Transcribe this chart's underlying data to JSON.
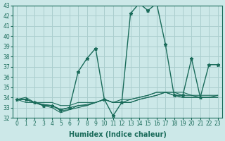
{
  "xlabel": "Humidex (Indice chaleur)",
  "x": [
    0,
    1,
    2,
    3,
    4,
    5,
    6,
    7,
    8,
    9,
    10,
    11,
    12,
    13,
    14,
    15,
    16,
    17,
    18,
    19,
    20,
    21,
    22,
    23
  ],
  "series": [
    {
      "values": [
        33.8,
        33.8,
        33.5,
        33.2,
        33.2,
        32.8,
        33.0,
        36.5,
        37.8,
        38.8,
        33.8,
        32.2,
        33.5,
        42.2,
        43.2,
        42.5,
        43.2,
        39.2,
        34.2,
        34.2,
        37.8,
        34.0,
        37.2,
        37.2
      ],
      "markers": true,
      "lw": 1.0
    },
    {
      "values": [
        33.8,
        34.0,
        33.5,
        33.5,
        33.5,
        33.2,
        33.2,
        33.5,
        33.5,
        33.5,
        33.8,
        33.5,
        33.5,
        33.5,
        33.8,
        34.0,
        34.2,
        34.5,
        34.5,
        34.5,
        34.2,
        34.2,
        34.2,
        34.2
      ],
      "markers": false,
      "lw": 0.8
    },
    {
      "values": [
        33.8,
        33.8,
        33.5,
        33.3,
        33.2,
        32.8,
        33.0,
        33.2,
        33.3,
        33.5,
        33.8,
        33.5,
        33.8,
        33.8,
        34.0,
        34.2,
        34.5,
        34.5,
        34.5,
        34.2,
        34.2,
        34.0,
        34.0,
        34.2
      ],
      "markers": false,
      "lw": 0.8
    },
    {
      "values": [
        33.8,
        33.5,
        33.5,
        33.3,
        33.2,
        32.7,
        32.8,
        33.2,
        33.2,
        33.5,
        33.8,
        33.5,
        33.5,
        33.8,
        34.0,
        34.2,
        34.5,
        34.5,
        34.2,
        34.0,
        34.0,
        34.0,
        34.0,
        34.0
      ],
      "markers": false,
      "lw": 0.8
    },
    {
      "values": [
        33.8,
        33.8,
        33.5,
        33.2,
        33.0,
        32.5,
        32.8,
        33.0,
        33.2,
        33.5,
        33.8,
        33.5,
        33.5,
        33.5,
        33.8,
        34.0,
        34.2,
        34.5,
        34.2,
        34.0,
        34.0,
        34.0,
        34.0,
        34.0
      ],
      "markers": false,
      "lw": 0.8
    }
  ],
  "line_color": "#1a6b5a",
  "marker": "*",
  "marker_size": 3.5,
  "bg_color": "#cce8e8",
  "grid_color": "#aacece",
  "ylim": [
    32,
    43
  ],
  "yticks": [
    32,
    33,
    34,
    35,
    36,
    37,
    38,
    39,
    40,
    41,
    42,
    43
  ],
  "xticks": [
    0,
    1,
    2,
    3,
    4,
    5,
    6,
    7,
    8,
    9,
    10,
    11,
    12,
    13,
    14,
    15,
    16,
    17,
    18,
    19,
    20,
    21,
    22,
    23
  ],
  "tick_fontsize": 5.5,
  "label_fontsize": 7
}
